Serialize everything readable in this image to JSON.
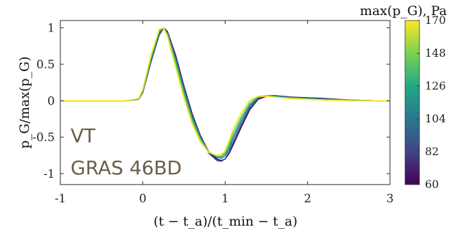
{
  "chart_data": {
    "type": "line",
    "xlabel": "(t − t_a)/(t_min − t_a)",
    "ylabel": "p_G/max(p_G)",
    "xlim": [
      -1,
      3
    ],
    "ylim": [
      -1.15,
      1.1
    ],
    "x_ticks": [
      "-1",
      "0",
      "1",
      "2",
      "3"
    ],
    "y_ticks": [
      "1",
      "0.5",
      "0",
      "-0.5",
      "-1"
    ],
    "grid": false,
    "colorbar": {
      "label": "max(p_G), Pa",
      "range": [
        60,
        170
      ],
      "ticks": [
        "170",
        "148",
        "126",
        "104",
        "82",
        "60"
      ],
      "colormap": [
        "#440154",
        "#414487",
        "#2a788e",
        "#22a884",
        "#7ad151",
        "#fde725"
      ]
    },
    "annotations": [
      "VT",
      "GRAS 46BD"
    ],
    "annotation_color": "#6b5d45",
    "series_note": "many overlapping normalized pulse traces, one per peak pressure level",
    "x": [
      -1,
      -0.5,
      -0.2,
      -0.05,
      0.0,
      0.1,
      0.2,
      0.25,
      0.3,
      0.4,
      0.5,
      0.6,
      0.7,
      0.8,
      0.9,
      0.95,
      1.0,
      1.05,
      1.1,
      1.2,
      1.3,
      1.4,
      1.5,
      1.6,
      1.7,
      1.8,
      2.0,
      2.2,
      2.5,
      2.8,
      3.0
    ],
    "series": [
      {
        "color_value": 60,
        "values": [
          0,
          0,
          0,
          0.02,
          0.12,
          0.55,
          0.92,
          1.0,
          0.95,
          0.62,
          0.2,
          -0.18,
          -0.48,
          -0.7,
          -0.8,
          -0.82,
          -0.8,
          -0.72,
          -0.6,
          -0.35,
          -0.12,
          0.02,
          0.06,
          0.07,
          0.06,
          0.05,
          0.04,
          0.03,
          0.01,
          0.0,
          0.0
        ]
      },
      {
        "color_value": 82,
        "values": [
          0,
          0,
          0,
          0.02,
          0.11,
          0.53,
          0.9,
          0.99,
          0.94,
          0.6,
          0.18,
          -0.2,
          -0.5,
          -0.72,
          -0.82,
          -0.83,
          -0.8,
          -0.7,
          -0.57,
          -0.32,
          -0.1,
          0.03,
          0.07,
          0.07,
          0.06,
          0.05,
          0.03,
          0.02,
          0.01,
          0.0,
          0.0
        ]
      },
      {
        "color_value": 104,
        "values": [
          0,
          0,
          0,
          0.02,
          0.12,
          0.56,
          0.93,
          1.0,
          0.93,
          0.57,
          0.15,
          -0.22,
          -0.5,
          -0.7,
          -0.78,
          -0.79,
          -0.76,
          -0.66,
          -0.52,
          -0.28,
          -0.07,
          0.04,
          0.07,
          0.06,
          0.05,
          0.04,
          0.03,
          0.02,
          0.01,
          0.0,
          0.0
        ]
      },
      {
        "color_value": 126,
        "values": [
          0,
          0,
          0,
          0.02,
          0.13,
          0.58,
          0.95,
          1.0,
          0.92,
          0.54,
          0.12,
          -0.25,
          -0.52,
          -0.7,
          -0.77,
          -0.77,
          -0.73,
          -0.62,
          -0.48,
          -0.24,
          -0.05,
          0.05,
          0.07,
          0.06,
          0.05,
          0.04,
          0.03,
          0.02,
          0.01,
          0.0,
          0.0
        ]
      },
      {
        "color_value": 148,
        "values": [
          0,
          0,
          0,
          0.03,
          0.14,
          0.6,
          0.97,
          1.0,
          0.9,
          0.5,
          0.08,
          -0.28,
          -0.54,
          -0.7,
          -0.76,
          -0.76,
          -0.71,
          -0.58,
          -0.43,
          -0.2,
          -0.02,
          0.06,
          0.07,
          0.05,
          0.04,
          0.03,
          0.02,
          0.01,
          0.0,
          0.0,
          0.0
        ]
      },
      {
        "color_value": 170,
        "values": [
          0,
          0,
          0,
          0.03,
          0.16,
          0.63,
          0.98,
          1.0,
          0.88,
          0.45,
          0.03,
          -0.32,
          -0.57,
          -0.71,
          -0.75,
          -0.74,
          -0.68,
          -0.54,
          -0.38,
          -0.15,
          0.01,
          0.06,
          0.06,
          0.05,
          0.04,
          0.03,
          0.02,
          0.01,
          0.0,
          0.0,
          0.0
        ]
      }
    ]
  }
}
